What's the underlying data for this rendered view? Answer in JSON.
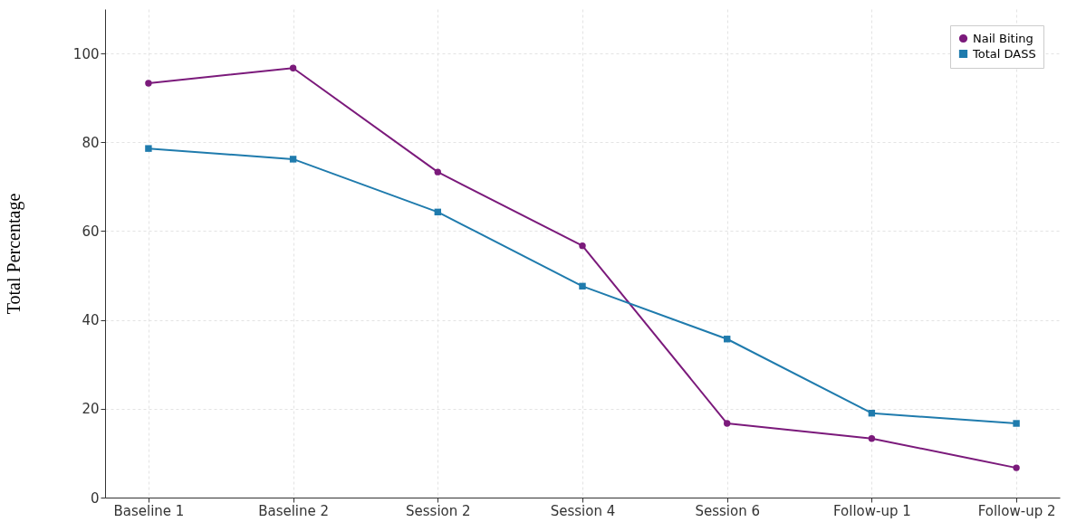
{
  "chart_data": {
    "type": "line",
    "ylabel": "Total Percentage",
    "categories": [
      "Baseline 1",
      "Baseline 2",
      "Session 2",
      "Session 4",
      "Session 6",
      "Follow-up 1",
      "Follow-up 2"
    ],
    "series": [
      {
        "name": "Nail Biting",
        "color": "#7b1a7b",
        "marker": "circle",
        "values": [
          93.3,
          96.7,
          73.3,
          56.7,
          16.7,
          13.3,
          6.7
        ]
      },
      {
        "name": "Total DASS",
        "color": "#1f7bad",
        "marker": "square",
        "values": [
          78.6,
          76.2,
          64.3,
          47.6,
          35.7,
          19.0,
          16.7
        ]
      }
    ],
    "ylim": [
      0,
      110
    ],
    "yticks": [
      0,
      20,
      40,
      60,
      80,
      100
    ],
    "grid": true,
    "legend": "top right",
    "line_style": "solid"
  }
}
